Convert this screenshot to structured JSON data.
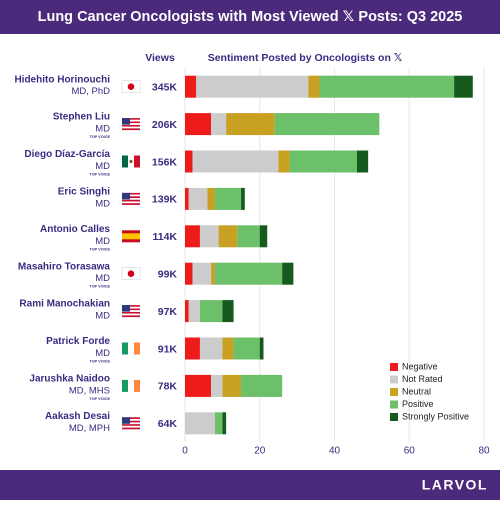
{
  "chart_data": {
    "type": "bar",
    "orientation": "horizontal",
    "stacked": true,
    "title": "Lung Cancer Oncologists with Most Viewed 𝕏 Posts: Q3 2025",
    "subtitle": "Sentiment Posted by Oncologists on 𝕏",
    "brand": "LARVOL",
    "categories": [
      "Hidehito Horinouchi",
      "Stephen Liu",
      "Diego Díaz-García",
      "Eric Singhi",
      "Antonio Calles",
      "Masahiro Torasawa",
      "Rami Manochakian",
      "Patrick Forde",
      "Jarushka Naidoo",
      "Aakash Desai"
    ],
    "credentials": [
      "MD, PhD",
      "MD",
      "MD",
      "MD",
      "MD",
      "MD",
      "MD",
      "MD",
      "MD, MHS",
      "MD, MPH"
    ],
    "badges": [
      null,
      "TOP VOICE",
      "TOP VOICE",
      null,
      "TOP VOICE",
      "TOP VOICE",
      null,
      "TOP VOICE",
      "TOP VOICE",
      null
    ],
    "views": {
      "title": "Views",
      "values": [
        345000,
        206000,
        156000,
        139000,
        114000,
        99000,
        97000,
        91000,
        78000,
        64000
      ],
      "value_labels": [
        "345K",
        "206K",
        "156K",
        "139K",
        "114K",
        "99K",
        "97K",
        "91K",
        "78K",
        "64K"
      ]
    },
    "series": [
      {
        "name": "Negative",
        "color": "#ee1b1b",
        "values": [
          3,
          7,
          2,
          1,
          4,
          2,
          1,
          4,
          7,
          0
        ]
      },
      {
        "name": "Not Rated",
        "color": "#cccccc",
        "values": [
          30,
          4,
          23,
          5,
          5,
          5,
          3,
          6,
          3,
          8
        ]
      },
      {
        "name": "Neutral",
        "color": "#c8a022",
        "values": [
          3,
          13,
          3,
          2,
          5,
          1,
          0,
          3,
          5,
          0
        ]
      },
      {
        "name": "Positive",
        "color": "#6cc06a",
        "values": [
          36,
          28,
          18,
          7,
          6,
          18,
          6,
          7,
          11,
          2
        ]
      },
      {
        "name": "Strongly Positive",
        "color": "#175a1e",
        "values": [
          5,
          0,
          3,
          1,
          2,
          3,
          3,
          1,
          0,
          1
        ]
      }
    ],
    "xlim": [
      0,
      80
    ],
    "xticks": [
      0,
      20,
      40,
      60,
      80
    ],
    "grid": true,
    "legend": "lower right"
  }
}
